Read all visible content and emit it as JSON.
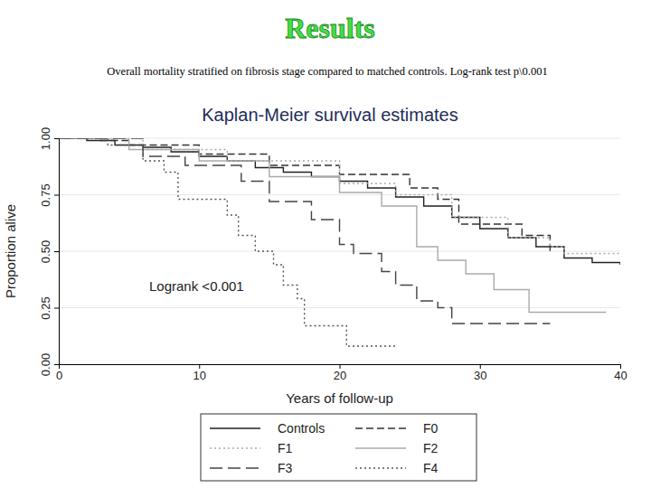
{
  "chart_data": {
    "type": "line",
    "heading": "Results",
    "subtitle": "Overall mortality stratified on fibrosis stage compared to matched controls. Log-rank test p\\0.001",
    "title": "Kaplan-Meier survival estimates",
    "x_label": "Years of follow-up",
    "y_label": "Proportion alive",
    "annotations": [
      "Logrank <0.001"
    ],
    "xlim": [
      0,
      40
    ],
    "ylim": [
      0,
      1
    ],
    "xticks": [
      0,
      10,
      20,
      30,
      40
    ],
    "yticks": [
      {
        "value": 0,
        "label": "0.00"
      },
      {
        "value": 0.25,
        "label": "0.25"
      },
      {
        "value": 0.5,
        "label": "0.50"
      },
      {
        "value": 0.75,
        "label": "0.75"
      },
      {
        "value": 1,
        "label": "1.00"
      }
    ],
    "grid": true,
    "legend": "bottom",
    "series": [
      {
        "name": "Controls",
        "color": "#222222",
        "line_style": "solid",
        "x": [
          0,
          2,
          4,
          6,
          8,
          10,
          12,
          14,
          16,
          18,
          20,
          22,
          24,
          26,
          28,
          30,
          32,
          34,
          36,
          38,
          40
        ],
        "values": [
          1,
          0.99,
          0.97,
          0.96,
          0.94,
          0.92,
          0.9,
          0.87,
          0.85,
          0.83,
          0.81,
          0.78,
          0.74,
          0.7,
          0.65,
          0.6,
          0.56,
          0.52,
          0.47,
          0.45,
          0.44
        ]
      },
      {
        "name": "F0",
        "color": "#333333",
        "line_style": "dashed",
        "x": [
          0,
          3,
          5,
          10,
          15,
          20,
          25,
          27,
          28.5,
          33,
          35
        ],
        "values": [
          1,
          0.99,
          0.97,
          0.93,
          0.88,
          0.84,
          0.78,
          0.73,
          0.62,
          0.57,
          0.5
        ]
      },
      {
        "name": "F1",
        "color": "#aaaaaa",
        "line_style": "dotted",
        "x": [
          0,
          6,
          12,
          20,
          24,
          28,
          32,
          35,
          36,
          40
        ],
        "values": [
          1,
          0.95,
          0.9,
          0.8,
          0.75,
          0.65,
          0.56,
          0.52,
          0.49,
          0.49
        ]
      },
      {
        "name": "F2",
        "color": "#aaaaaa",
        "line_style": "solid",
        "x": [
          0,
          5,
          10,
          15,
          20,
          23,
          25.5,
          27,
          29,
          31,
          33.5,
          39
        ],
        "values": [
          1,
          0.95,
          0.9,
          0.83,
          0.76,
          0.7,
          0.52,
          0.46,
          0.4,
          0.33,
          0.23,
          0.23
        ]
      },
      {
        "name": "F3",
        "color": "#444444",
        "line_style": "longdash",
        "x": [
          0,
          6,
          9,
          13,
          15,
          18,
          20,
          21,
          23,
          24,
          25.5,
          27,
          28,
          35
        ],
        "values": [
          1,
          0.92,
          0.88,
          0.81,
          0.72,
          0.64,
          0.53,
          0.49,
          0.41,
          0.35,
          0.28,
          0.25,
          0.18,
          0.18
        ]
      },
      {
        "name": "F4",
        "color": "#555555",
        "line_style": "dotted",
        "x": [
          0,
          3.5,
          6,
          7.5,
          8.5,
          12,
          12.8,
          14,
          15.3,
          16,
          17,
          17.5,
          20.5,
          24
        ],
        "values": [
          1,
          0.97,
          0.9,
          0.85,
          0.73,
          0.66,
          0.57,
          0.5,
          0.44,
          0.35,
          0.29,
          0.17,
          0.08,
          0.08
        ]
      }
    ]
  }
}
